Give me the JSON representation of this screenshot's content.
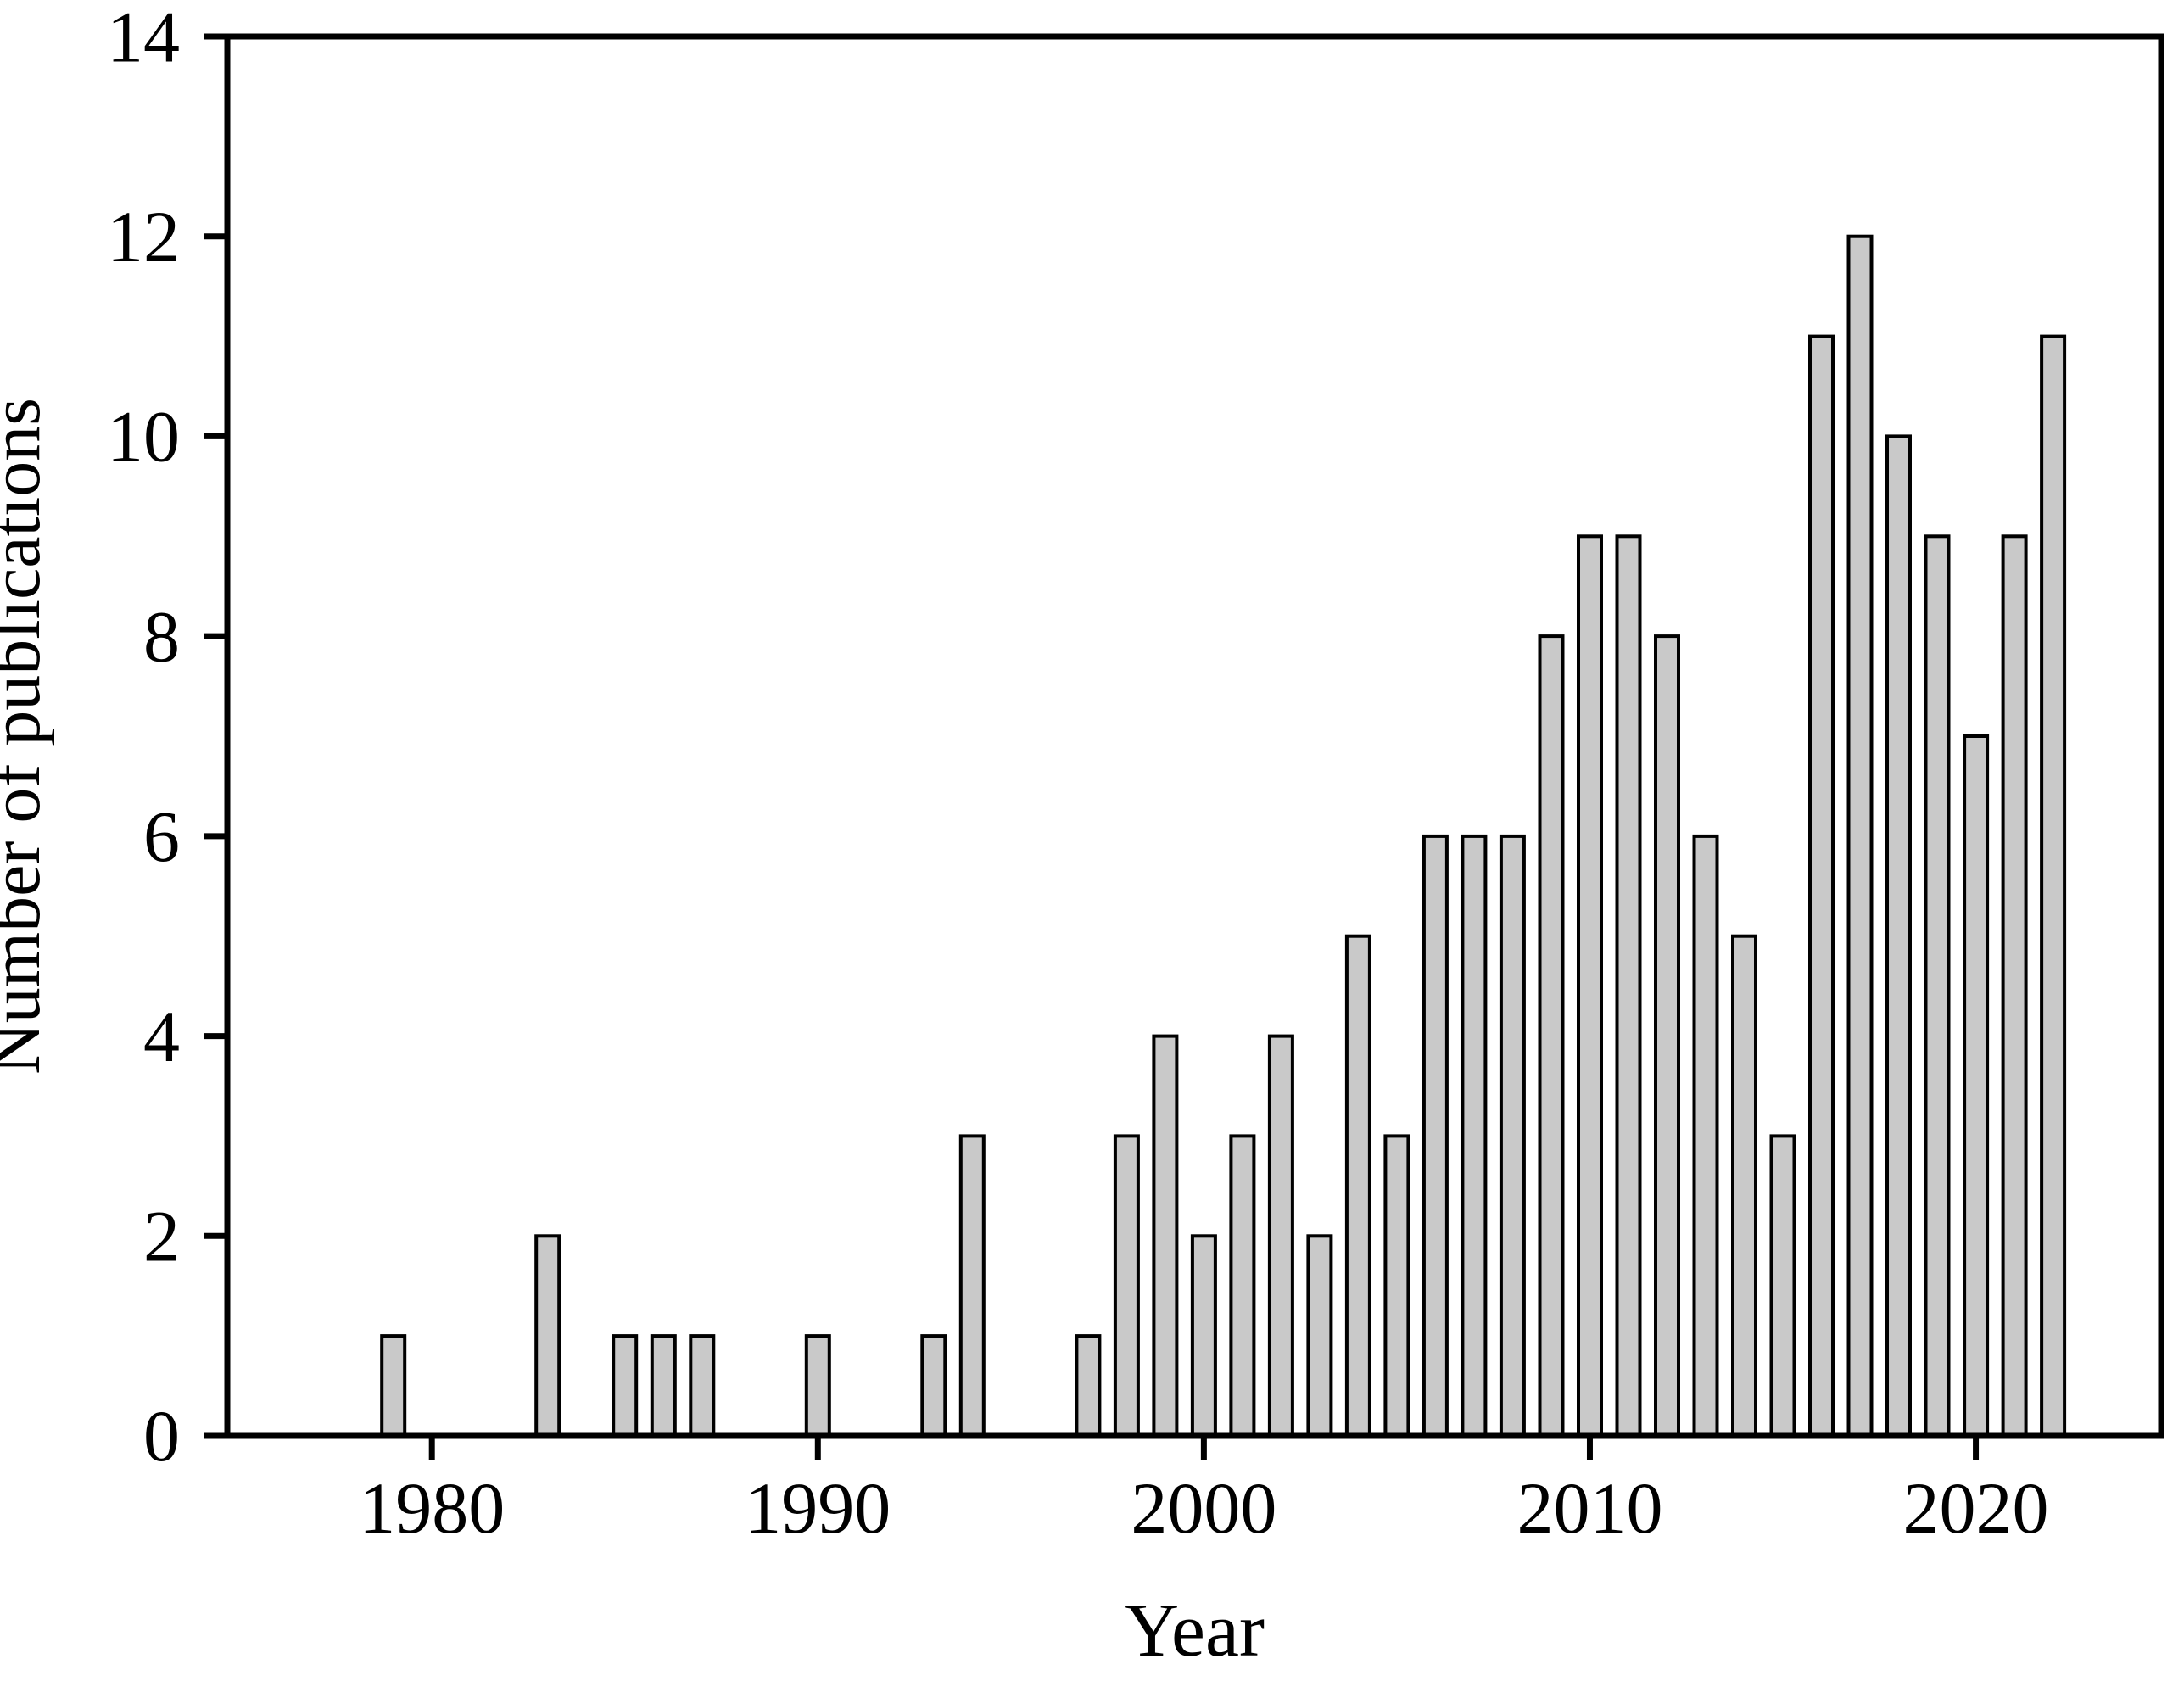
{
  "figure": {
    "background": "#ffffff",
    "text_color": "#000000"
  },
  "chart_data": {
    "type": "bar",
    "title": "",
    "xlabel": "Year",
    "ylabel": "Number of publications",
    "xlim": [
      1974.7,
      2024.8
    ],
    "ylim": [
      0,
      14
    ],
    "xticks": [
      1980,
      1990,
      2000,
      2010,
      2020
    ],
    "yticks": [
      0,
      2,
      4,
      6,
      8,
      10,
      12,
      14
    ],
    "grid": false,
    "legend": null,
    "bar_fill": "#c9c9c9",
    "bar_stroke": "#000000",
    "frame_color": "#000000",
    "points": [
      {
        "year": 1979,
        "value": 1
      },
      {
        "year": 1983,
        "value": 2
      },
      {
        "year": 1985,
        "value": 1
      },
      {
        "year": 1986,
        "value": 1
      },
      {
        "year": 1987,
        "value": 1
      },
      {
        "year": 1990,
        "value": 1
      },
      {
        "year": 1993,
        "value": 1
      },
      {
        "year": 1994,
        "value": 3
      },
      {
        "year": 1997,
        "value": 1
      },
      {
        "year": 1998,
        "value": 3
      },
      {
        "year": 1999,
        "value": 4
      },
      {
        "year": 2000,
        "value": 2
      },
      {
        "year": 2001,
        "value": 3
      },
      {
        "year": 2002,
        "value": 4
      },
      {
        "year": 2003,
        "value": 2
      },
      {
        "year": 2004,
        "value": 5
      },
      {
        "year": 2005,
        "value": 3
      },
      {
        "year": 2006,
        "value": 6
      },
      {
        "year": 2007,
        "value": 6
      },
      {
        "year": 2008,
        "value": 6
      },
      {
        "year": 2009,
        "value": 8
      },
      {
        "year": 2010,
        "value": 9
      },
      {
        "year": 2011,
        "value": 9
      },
      {
        "year": 2012,
        "value": 8
      },
      {
        "year": 2013,
        "value": 6
      },
      {
        "year": 2014,
        "value": 5
      },
      {
        "year": 2015,
        "value": 3
      },
      {
        "year": 2016,
        "value": 11
      },
      {
        "year": 2017,
        "value": 12
      },
      {
        "year": 2018,
        "value": 10
      },
      {
        "year": 2019,
        "value": 9
      },
      {
        "year": 2020,
        "value": 7
      },
      {
        "year": 2021,
        "value": 9
      },
      {
        "year": 2022,
        "value": 11
      }
    ]
  }
}
